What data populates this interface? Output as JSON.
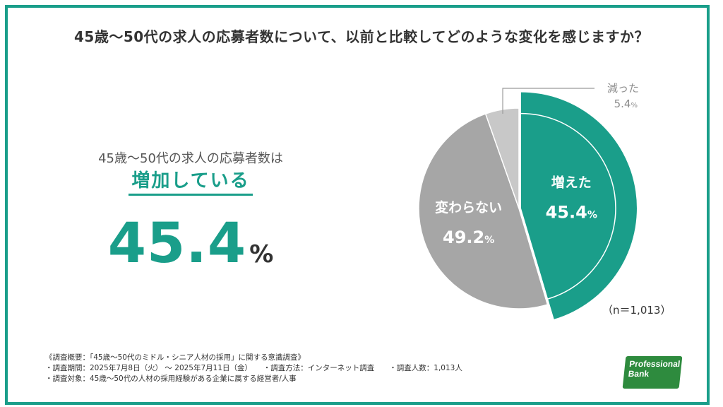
{
  "title": "45歳〜50代の求人の応募者数について、以前と比較してどのような変化を感じますか？",
  "summary": {
    "lead": "45歳〜50代の求人の応募者数は",
    "headline": "増加している",
    "value": "45.4",
    "unit": "%"
  },
  "chart_data": {
    "type": "pie",
    "slices": [
      {
        "label": "増えた",
        "value": 45.4,
        "value_text": "45.4",
        "unit": "%",
        "color": "#1a9e8a"
      },
      {
        "label": "変わらない",
        "value": 49.2,
        "value_text": "49.2",
        "unit": "%",
        "color": "#a6a6a6"
      },
      {
        "label": "減った",
        "value": 5.4,
        "value_text": "5.4",
        "unit": "%",
        "color": "#c8c8c8"
      }
    ],
    "n_label": "（n＝1,013）"
  },
  "notes": [
    "《調査概要：「45歳〜50代のミドル・シニア人材の採用」に関する意識調査》",
    "・調査期間：2025年7月8日（火） 〜 2025年7月11日（金）　　・調査方法：インターネット調査　　・調査人数：1,013人",
    "・調査対象：45歳〜50代の人材の採用経験がある企業に属する経営者/人事"
  ],
  "logo": {
    "line1": "Professional",
    "line2": "Bank"
  },
  "colors": {
    "accent": "#1a9e8a",
    "frame": "#1a9e8a"
  }
}
